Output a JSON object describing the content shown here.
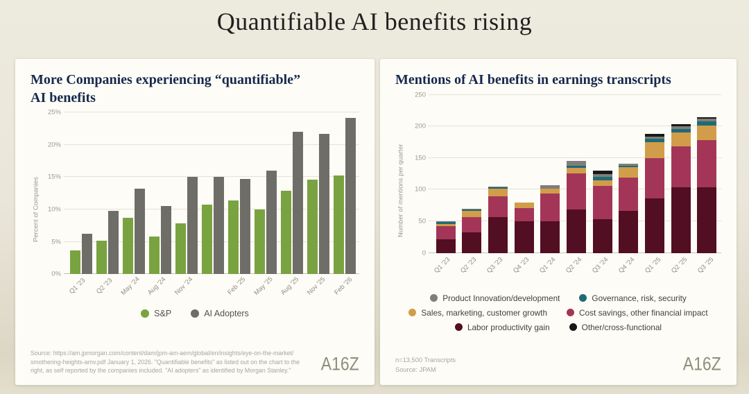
{
  "page_title": "Quantifiable AI benefits rising",
  "left_panel": {
    "title": "More Companies experiencing “quantifiable”\nAI benefits",
    "source_note": "Source: https://am.jpmorgan.com/content/dam/jpm-am-aem/global/en/insights/eye-on-the-market/\nsmothering-heights-amv.pdf January 1, 2026. \"Quantifiable benefits\" as listed out on the chart to the\nright, as self reported by the companies included. \"AI adopters\" as identified by Morgan Stanley.\"",
    "logo": "A16Z",
    "chart_data": {
      "type": "bar",
      "title": "More Companies experiencing “quantifiable” AI benefits",
      "ylabel": "Percent of Companies",
      "y_ticks": [
        0,
        5,
        10,
        15,
        20,
        25
      ],
      "y_max": 25,
      "y_tick_suffix": "%",
      "ylim": [
        0,
        25
      ],
      "grid": true,
      "categories": [
        "Q1 '23",
        "Q2 '23",
        "May '24",
        "Aug '24",
        "Nov '24",
        "",
        "Feb '25",
        "May '25",
        "Aug '25",
        "Nov '25",
        "Feb '26"
      ],
      "series": [
        {
          "name": "S&P",
          "color": "#79a340",
          "values": [
            3.7,
            5.2,
            8.7,
            5.8,
            7.9,
            10.8,
            11.4,
            10.0,
            12.9,
            14.6,
            15.3
          ]
        },
        {
          "name": "AI Adopters",
          "color": "#6f6d68",
          "values": [
            6.2,
            9.8,
            13.2,
            10.5,
            15.0,
            15.0,
            14.7,
            16.0,
            22.0,
            21.7,
            24.2
          ]
        }
      ],
      "legend": [
        {
          "name": "S&P",
          "color": "#79a340"
        },
        {
          "name": "AI Adopters",
          "color": "#6f6d68"
        }
      ],
      "legend_position": "bottom"
    }
  },
  "right_panel": {
    "title": "Mentions of AI benefits in earnings transcripts",
    "footnote": "n=13,500 Transcripts\nSource: JPAM",
    "logo": "A16Z",
    "chart_data": {
      "type": "stacked-bar",
      "title": "Mentions of AI benefits in earnings transcripts",
      "ylabel": "Number of mentions per quarter",
      "y_ticks": [
        0,
        50,
        100,
        150,
        200,
        250
      ],
      "y_max": 250,
      "y_tick_suffix": "",
      "ylim": [
        0,
        250
      ],
      "grid": true,
      "categories": [
        "Q1 '23",
        "Q2 '23",
        "Q3 '23",
        "Q4 '23",
        "Q1 '24",
        "Q2 '24",
        "Q3 '24",
        "Q4 '24",
        "Q1 '25",
        "Q2 '25",
        "Q3 '25"
      ],
      "series": [
        {
          "name": "Labor productivity gain",
          "color": "#520e23",
          "values": [
            21,
            32,
            57,
            50,
            50,
            69,
            53,
            66,
            86,
            104,
            104
          ]
        },
        {
          "name": "Cost savings, other financial impact",
          "color": "#a33658",
          "values": [
            21,
            25,
            33,
            21,
            44,
            57,
            53,
            53,
            64,
            64,
            74
          ]
        },
        {
          "name": "Sales, marketing, customer growth",
          "color": "#d19d4a",
          "values": [
            4,
            10,
            12,
            9,
            8,
            8,
            9,
            17,
            25,
            22,
            23
          ]
        },
        {
          "name": "Governance, risk, security",
          "color": "#1f6b75",
          "values": [
            3,
            2,
            2,
            0,
            0,
            4,
            5,
            2,
            5,
            6,
            7
          ]
        },
        {
          "name": "Product Innovation/development",
          "color": "#807e7a",
          "values": [
            1,
            1,
            1,
            0,
            5,
            8,
            5,
            3,
            4,
            4,
            4
          ]
        },
        {
          "name": "Other/cross-functional",
          "color": "#181818",
          "values": [
            0,
            0,
            0,
            0,
            0,
            0,
            5,
            0,
            4,
            3,
            3
          ]
        }
      ],
      "legend": [
        {
          "name": "Product Innovation/development",
          "color": "#807e7a"
        },
        {
          "name": "Governance, risk, security",
          "color": "#1f6b75"
        },
        {
          "name": "Sales, marketing, customer growth",
          "color": "#d19d4a"
        },
        {
          "name": "Cost savings, other financial impact",
          "color": "#a33658"
        },
        {
          "name": "Labor productivity gain",
          "color": "#520e23"
        },
        {
          "name": "Other/cross-functional",
          "color": "#181818"
        }
      ],
      "legend_position": "bottom"
    }
  }
}
